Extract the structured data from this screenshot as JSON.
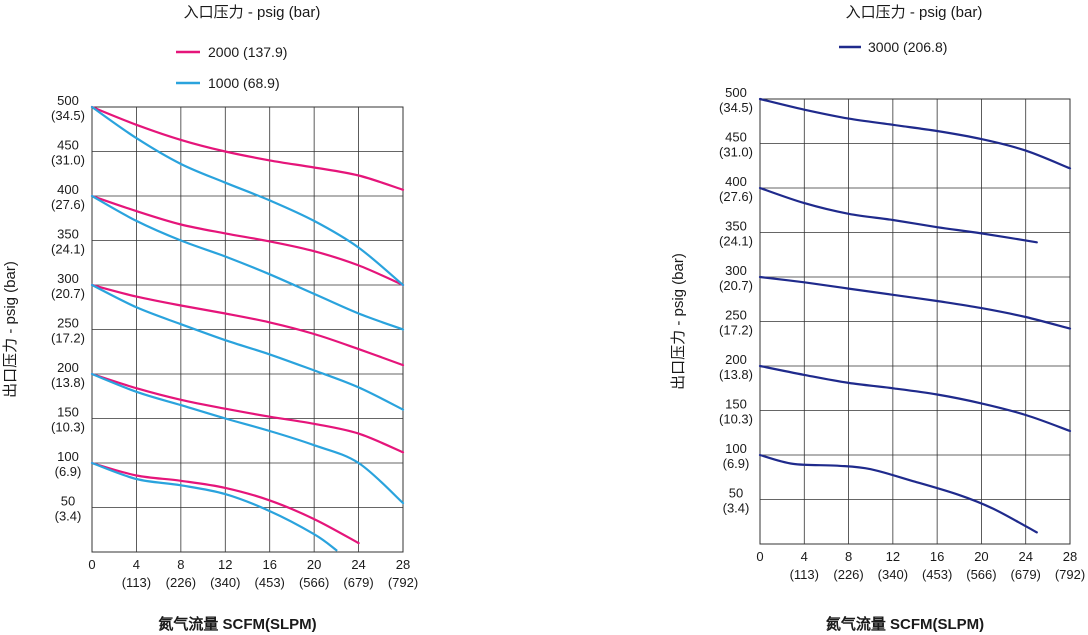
{
  "chart_data": [
    {
      "type": "line",
      "title": "入口压力 - psig (bar)",
      "xlabel": "氮气流量 SCFM(SLPM)",
      "ylabel": "出口压力 - psig (bar)",
      "xlim": [
        0,
        28
      ],
      "ylim": [
        0,
        500
      ],
      "x_ticks": [
        {
          "value": 0,
          "label": "0",
          "sub": ""
        },
        {
          "value": 4,
          "label": "4",
          "sub": "(113)"
        },
        {
          "value": 8,
          "label": "8",
          "sub": "(226)"
        },
        {
          "value": 12,
          "label": "12",
          "sub": "(340)"
        },
        {
          "value": 16,
          "label": "16",
          "sub": "(453)"
        },
        {
          "value": 20,
          "label": "20",
          "sub": "(566)"
        },
        {
          "value": 24,
          "label": "24",
          "sub": "(679)"
        },
        {
          "value": 28,
          "label": "28",
          "sub": "(792)"
        }
      ],
      "y_ticks": [
        {
          "value": 50,
          "label": "50",
          "sub": "(3.4)"
        },
        {
          "value": 100,
          "label": "100",
          "sub": "(6.9)"
        },
        {
          "value": 150,
          "label": "150",
          "sub": "(10.3)"
        },
        {
          "value": 200,
          "label": "200",
          "sub": "(13.8)"
        },
        {
          "value": 250,
          "label": "250",
          "sub": "(17.2)"
        },
        {
          "value": 300,
          "label": "300",
          "sub": "(20.7)"
        },
        {
          "value": 350,
          "label": "350",
          "sub": "(24.1)"
        },
        {
          "value": 400,
          "label": "400",
          "sub": "(27.6)"
        },
        {
          "value": 450,
          "label": "450",
          "sub": "(31.0)"
        },
        {
          "value": 500,
          "label": "500",
          "sub": "(34.5)"
        }
      ],
      "legend": [
        {
          "name": "2000 (137.9)",
          "color": "#e5157a"
        },
        {
          "name": "1000 (68.9)",
          "color": "#2aa3dd"
        }
      ],
      "series": [
        {
          "name": "2000 (137.9)",
          "color": "#e5157a",
          "points": [
            [
              0,
              500
            ],
            [
              4,
              480
            ],
            [
              8,
              463
            ],
            [
              12,
              450
            ],
            [
              16,
              440
            ],
            [
              20,
              432
            ],
            [
              24,
              423
            ],
            [
              28,
              407
            ]
          ]
        },
        {
          "name": "2000 (137.9)",
          "color": "#e5157a",
          "points": [
            [
              0,
              400
            ],
            [
              4,
              383
            ],
            [
              8,
              368
            ],
            [
              12,
              358
            ],
            [
              16,
              349
            ],
            [
              20,
              338
            ],
            [
              24,
              322
            ],
            [
              28,
              300
            ]
          ]
        },
        {
          "name": "2000 (137.9)",
          "color": "#e5157a",
          "points": [
            [
              0,
              300
            ],
            [
              4,
              287
            ],
            [
              8,
              277
            ],
            [
              12,
              268
            ],
            [
              16,
              258
            ],
            [
              20,
              245
            ],
            [
              24,
              228
            ],
            [
              28,
              210
            ]
          ]
        },
        {
          "name": "2000 (137.9)",
          "color": "#e5157a",
          "points": [
            [
              0,
              200
            ],
            [
              4,
              184
            ],
            [
              8,
              171
            ],
            [
              12,
              161
            ],
            [
              16,
              152
            ],
            [
              20,
              144
            ],
            [
              24,
              133
            ],
            [
              28,
              112
            ]
          ]
        },
        {
          "name": "2000 (137.9)",
          "color": "#e5157a",
          "points": [
            [
              0,
              100
            ],
            [
              4,
              86
            ],
            [
              8,
              80
            ],
            [
              12,
              72
            ],
            [
              16,
              58
            ],
            [
              20,
              37
            ],
            [
              24,
              10
            ]
          ]
        },
        {
          "name": "1000 (68.9)",
          "color": "#2aa3dd",
          "points": [
            [
              0,
              500
            ],
            [
              4,
              465
            ],
            [
              8,
              436
            ],
            [
              12,
              415
            ],
            [
              16,
              395
            ],
            [
              20,
              372
            ],
            [
              24,
              342
            ],
            [
              28,
              300
            ]
          ]
        },
        {
          "name": "1000 (68.9)",
          "color": "#2aa3dd",
          "points": [
            [
              0,
              400
            ],
            [
              4,
              372
            ],
            [
              8,
              350
            ],
            [
              12,
              332
            ],
            [
              16,
              312
            ],
            [
              20,
              290
            ],
            [
              24,
              268
            ],
            [
              28,
              250
            ]
          ]
        },
        {
          "name": "1000 (68.9)",
          "color": "#2aa3dd",
          "points": [
            [
              0,
              300
            ],
            [
              4,
              275
            ],
            [
              8,
              256
            ],
            [
              12,
              238
            ],
            [
              16,
              222
            ],
            [
              20,
              204
            ],
            [
              24,
              185
            ],
            [
              28,
              160
            ]
          ]
        },
        {
          "name": "1000 (68.9)",
          "color": "#2aa3dd",
          "points": [
            [
              0,
              200
            ],
            [
              4,
              180
            ],
            [
              8,
              165
            ],
            [
              12,
              150
            ],
            [
              16,
              136
            ],
            [
              20,
              120
            ],
            [
              24,
              100
            ],
            [
              28,
              55
            ]
          ]
        },
        {
          "name": "1000 (68.9)",
          "color": "#2aa3dd",
          "points": [
            [
              0,
              100
            ],
            [
              4,
              82
            ],
            [
              8,
              75
            ],
            [
              12,
              65
            ],
            [
              16,
              46
            ],
            [
              20,
              20
            ],
            [
              22,
              2
            ]
          ]
        }
      ]
    },
    {
      "type": "line",
      "title": "入口压力 - psig (bar)",
      "xlabel": "氮气流量 SCFM(SLPM)",
      "ylabel": "出口压力 - psig (bar)",
      "xlim": [
        0,
        28
      ],
      "ylim": [
        0,
        500
      ],
      "x_ticks": [
        {
          "value": 0,
          "label": "0",
          "sub": ""
        },
        {
          "value": 4,
          "label": "4",
          "sub": "(113)"
        },
        {
          "value": 8,
          "label": "8",
          "sub": "(226)"
        },
        {
          "value": 12,
          "label": "12",
          "sub": "(340)"
        },
        {
          "value": 16,
          "label": "16",
          "sub": "(453)"
        },
        {
          "value": 20,
          "label": "20",
          "sub": "(566)"
        },
        {
          "value": 24,
          "label": "24",
          "sub": "(679)"
        },
        {
          "value": 28,
          "label": "28",
          "sub": "(792)"
        }
      ],
      "y_ticks": [
        {
          "value": 50,
          "label": "50",
          "sub": "(3.4)"
        },
        {
          "value": 100,
          "label": "100",
          "sub": "(6.9)"
        },
        {
          "value": 150,
          "label": "150",
          "sub": "(10.3)"
        },
        {
          "value": 200,
          "label": "200",
          "sub": "(13.8)"
        },
        {
          "value": 250,
          "label": "250",
          "sub": "(17.2)"
        },
        {
          "value": 300,
          "label": "300",
          "sub": "(20.7)"
        },
        {
          "value": 350,
          "label": "350",
          "sub": "(24.1)"
        },
        {
          "value": 400,
          "label": "400",
          "sub": "(27.6)"
        },
        {
          "value": 450,
          "label": "450",
          "sub": "(31.0)"
        },
        {
          "value": 500,
          "label": "500",
          "sub": "(34.5)"
        }
      ],
      "legend": [
        {
          "name": "3000 (206.8)",
          "color": "#1f2a8c"
        }
      ],
      "series": [
        {
          "name": "3000 (206.8)",
          "color": "#1f2a8c",
          "points": [
            [
              0,
              500
            ],
            [
              4,
              488
            ],
            [
              8,
              478
            ],
            [
              12,
              471
            ],
            [
              16,
              464
            ],
            [
              20,
              455
            ],
            [
              24,
              442
            ],
            [
              28,
              422
            ]
          ]
        },
        {
          "name": "3000 (206.8)",
          "color": "#1f2a8c",
          "points": [
            [
              0,
              400
            ],
            [
              4,
              383
            ],
            [
              8,
              371
            ],
            [
              12,
              364
            ],
            [
              16,
              356
            ],
            [
              20,
              349
            ],
            [
              25,
              339
            ]
          ]
        },
        {
          "name": "3000 (206.8)",
          "color": "#1f2a8c",
          "points": [
            [
              0,
              300
            ],
            [
              4,
              294
            ],
            [
              8,
              287
            ],
            [
              12,
              280
            ],
            [
              16,
              273
            ],
            [
              20,
              265
            ],
            [
              24,
              255
            ],
            [
              28,
              242
            ]
          ]
        },
        {
          "name": "3000 (206.8)",
          "color": "#1f2a8c",
          "points": [
            [
              0,
              200
            ],
            [
              4,
              190
            ],
            [
              8,
              181
            ],
            [
              12,
              175
            ],
            [
              16,
              168
            ],
            [
              20,
              158
            ],
            [
              24,
              145
            ],
            [
              28,
              127
            ]
          ]
        },
        {
          "name": "3000 (206.8)",
          "color": "#1f2a8c",
          "points": [
            [
              0,
              100
            ],
            [
              3,
              90
            ],
            [
              7,
              88
            ],
            [
              10,
              84
            ],
            [
              14,
              70
            ],
            [
              18,
              55
            ],
            [
              21,
              40
            ],
            [
              24,
              20
            ],
            [
              25,
              13
            ]
          ]
        }
      ]
    }
  ]
}
